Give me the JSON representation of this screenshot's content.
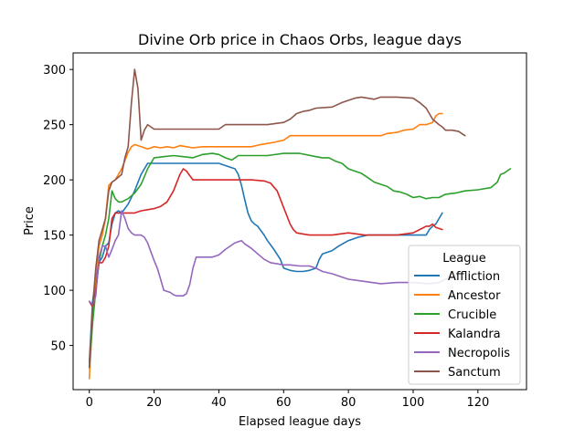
{
  "chart_data": {
    "type": "line",
    "title": "Divine Orb price in Chaos Orbs, league days",
    "xlabel": "Elapsed league days",
    "ylabel": "Price",
    "xlim": [
      -5,
      135
    ],
    "ylim": [
      10,
      315
    ],
    "xticks": [
      0,
      20,
      40,
      60,
      80,
      100,
      120
    ],
    "yticks": [
      50,
      100,
      150,
      200,
      250,
      300
    ],
    "grid": false,
    "legend": {
      "title": "League",
      "placement": "lower right"
    },
    "series": [
      {
        "name": "Affliction",
        "color": "#1f77b4",
        "x": [
          0,
          1,
          2,
          3,
          4,
          5,
          6,
          7,
          8,
          9,
          10,
          12,
          14,
          16,
          18,
          20,
          25,
          30,
          35,
          40,
          43,
          45,
          46,
          47,
          48,
          49,
          50,
          51,
          52,
          54,
          55,
          57,
          59,
          60,
          62,
          64,
          66,
          68,
          70,
          71,
          72,
          75,
          77,
          80,
          83,
          86,
          90,
          95,
          100,
          102,
          104,
          105,
          106,
          107,
          108,
          109
        ],
        "y": [
          35,
          90,
          110,
          125,
          130,
          140,
          143,
          160,
          170,
          172,
          170,
          178,
          190,
          205,
          215,
          215,
          215,
          215,
          215,
          215,
          212,
          210,
          205,
          195,
          182,
          170,
          163,
          160,
          158,
          150,
          145,
          137,
          128,
          120,
          118,
          117,
          117,
          118,
          120,
          128,
          133,
          136,
          140,
          145,
          148,
          150,
          150,
          150,
          150,
          150,
          150,
          155,
          158,
          160,
          165,
          170
        ]
      },
      {
        "name": "Ancestor",
        "color": "#ff7f0e",
        "x": [
          0,
          1,
          2,
          3,
          4,
          5,
          6,
          7,
          8,
          10,
          12,
          13,
          14,
          16,
          18,
          20,
          22,
          24,
          26,
          28,
          30,
          32,
          35,
          40,
          45,
          50,
          53,
          55,
          57,
          60,
          62,
          64,
          66,
          68,
          70,
          75,
          80,
          85,
          90,
          92,
          95,
          97,
          100,
          102,
          104,
          106,
          107,
          108,
          109
        ],
        "y": [
          20,
          75,
          115,
          140,
          150,
          165,
          195,
          198,
          200,
          210,
          225,
          230,
          232,
          230,
          228,
          230,
          229,
          230,
          229,
          231,
          230,
          229,
          230,
          230,
          230,
          230,
          232,
          233,
          234,
          236,
          240,
          240,
          240,
          240,
          240,
          240,
          240,
          240,
          240,
          242,
          243,
          245,
          246,
          250,
          250,
          252,
          258,
          260,
          260
        ]
      },
      {
        "name": "Crucible",
        "color": "#2ca02c",
        "x": [
          0,
          1,
          2,
          3,
          4,
          5,
          6,
          7,
          8,
          9,
          10,
          12,
          14,
          16,
          18,
          20,
          23,
          26,
          29,
          32,
          35,
          38,
          40,
          42,
          44,
          46,
          50,
          55,
          60,
          65,
          70,
          72,
          74,
          76,
          78,
          80,
          82,
          84,
          86,
          88,
          90,
          92,
          94,
          96,
          98,
          100,
          102,
          104,
          106,
          108,
          110,
          113,
          116,
          120,
          124,
          126,
          127,
          128,
          129,
          130
        ],
        "y": [
          30,
          70,
          100,
          125,
          140,
          150,
          165,
          190,
          183,
          180,
          180,
          183,
          188,
          196,
          210,
          220,
          221,
          222,
          221,
          220,
          223,
          224,
          223,
          220,
          218,
          222,
          222,
          222,
          224,
          224,
          221,
          220,
          220,
          217,
          215,
          210,
          208,
          206,
          202,
          198,
          196,
          194,
          190,
          189,
          187,
          184,
          185,
          183,
          184,
          184,
          187,
          188,
          190,
          191,
          193,
          198,
          205,
          206,
          208,
          210
        ]
      },
      {
        "name": "Kalandra",
        "color": "#d62728",
        "x": [
          0,
          1,
          2,
          3,
          4,
          5,
          6,
          7,
          8,
          9,
          10,
          12,
          14,
          16,
          18,
          20,
          22,
          24,
          26,
          28,
          29,
          30,
          32,
          34,
          36,
          40,
          45,
          50,
          54,
          56,
          58,
          60,
          62,
          63,
          64,
          66,
          68,
          70,
          75,
          80,
          85,
          90,
          95,
          100,
          102,
          104,
          105,
          106,
          107,
          108,
          109
        ],
        "y": [
          90,
          85,
          100,
          125,
          125,
          130,
          140,
          165,
          170,
          170,
          170,
          170,
          170,
          172,
          173,
          174,
          176,
          180,
          190,
          205,
          210,
          208,
          200,
          200,
          200,
          200,
          200,
          200,
          199,
          197,
          190,
          175,
          160,
          155,
          152,
          151,
          150,
          150,
          150,
          152,
          150,
          150,
          150,
          152,
          155,
          158,
          158,
          160,
          157,
          156,
          155
        ]
      },
      {
        "name": "Necropolis",
        "color": "#9467bd",
        "x": [
          0,
          1,
          2,
          3,
          4,
          5,
          6,
          7,
          8,
          9,
          10,
          11,
          12,
          13,
          14,
          15,
          16,
          17,
          18,
          19,
          20,
          21,
          22,
          23,
          24,
          25,
          26,
          27,
          28,
          29,
          30,
          31,
          32,
          33,
          35,
          38,
          40,
          42,
          44,
          45,
          46,
          47,
          48,
          50,
          52,
          54,
          56,
          58,
          60,
          62,
          65,
          68,
          70,
          72,
          75,
          80,
          85,
          90,
          95,
          100,
          105,
          108,
          110,
          112,
          115
        ],
        "y": [
          90,
          87,
          95,
          130,
          140,
          140,
          130,
          137,
          145,
          150,
          172,
          165,
          156,
          152,
          150,
          150,
          150,
          148,
          143,
          135,
          127,
          120,
          110,
          100,
          99,
          98,
          96,
          95,
          95,
          95,
          97,
          105,
          120,
          130,
          130,
          130,
          132,
          137,
          141,
          143,
          144,
          145,
          142,
          138,
          133,
          128,
          125,
          124,
          123,
          123,
          122,
          122,
          120,
          117,
          115,
          110,
          108,
          106,
          107,
          107,
          106,
          107,
          110,
          112,
          115
        ]
      },
      {
        "name": "Sanctum",
        "color": "#8c564b",
        "x": [
          0,
          1,
          2,
          3,
          4,
          5,
          6,
          7,
          8,
          10,
          11,
          12,
          13,
          14,
          15,
          16,
          17,
          18,
          20,
          25,
          30,
          35,
          40,
          42,
          45,
          50,
          55,
          60,
          62,
          64,
          66,
          68,
          70,
          75,
          78,
          80,
          82,
          84,
          86,
          88,
          90,
          92,
          95,
          100,
          102,
          104,
          106,
          108,
          109,
          110,
          112,
          114,
          116
        ],
        "y": [
          30,
          85,
          120,
          145,
          155,
          165,
          190,
          198,
          200,
          205,
          220,
          230,
          270,
          300,
          283,
          236,
          245,
          250,
          246,
          246,
          246,
          246,
          246,
          250,
          250,
          250,
          250,
          252,
          255,
          260,
          262,
          263,
          265,
          266,
          270,
          272,
          274,
          275,
          274,
          273,
          275,
          275,
          275,
          274,
          270,
          265,
          255,
          250,
          248,
          245,
          245,
          244,
          240
        ]
      }
    ]
  }
}
